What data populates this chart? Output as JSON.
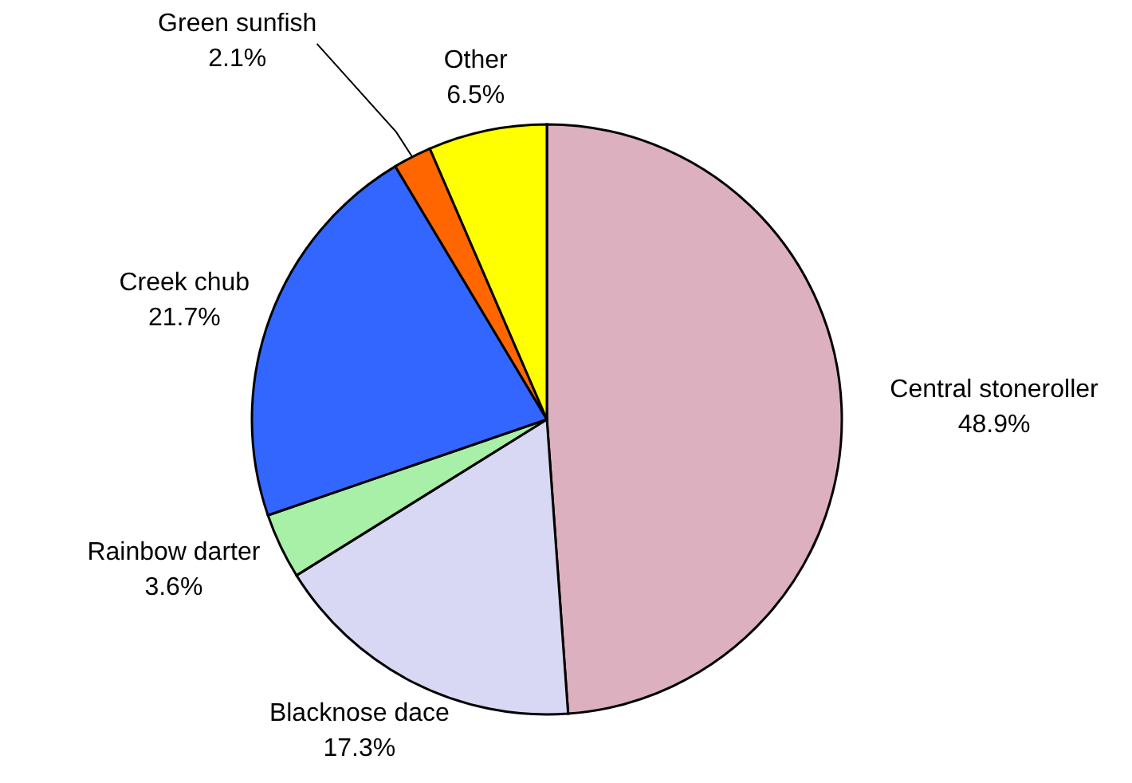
{
  "chart_data": {
    "type": "pie",
    "categories": [
      "Central stoneroller",
      "Blacknose dace",
      "Rainbow darter",
      "Creek chub",
      "Green sunfish",
      "Other"
    ],
    "values": [
      48.9,
      17.3,
      3.6,
      21.7,
      2.1,
      6.5
    ],
    "value_labels": [
      "48.9%",
      "17.3%",
      "3.6%",
      "21.7%",
      "2.1%",
      "6.5%"
    ],
    "colors": [
      "#dcb0bf",
      "#d8d8f4",
      "#a8f0a8",
      "#3366ff",
      "#ff6600",
      "#ffff00"
    ],
    "legend": false
  }
}
